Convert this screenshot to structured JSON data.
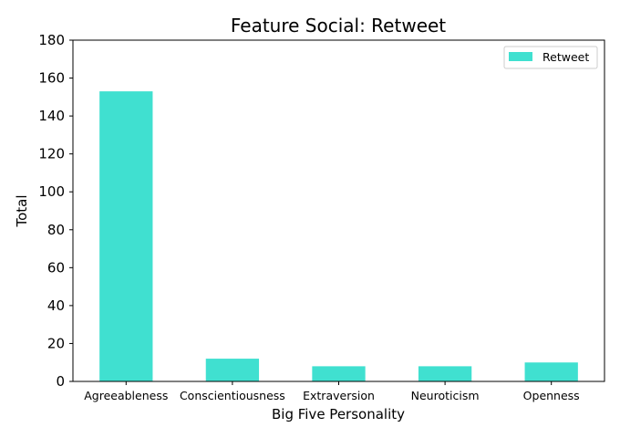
{
  "chart_data": {
    "type": "bar",
    "title": "Feature Social: Retweet",
    "xlabel": "Big Five Personality",
    "ylabel": "Total",
    "categories": [
      "Agreeableness",
      "Conscientiousness",
      "Extraversion",
      "Neuroticism",
      "Openness"
    ],
    "series": [
      {
        "name": "Retweet",
        "values": [
          153,
          12,
          8,
          8,
          10
        ]
      }
    ],
    "ylim": [
      0,
      180
    ],
    "yticks": [
      0,
      20,
      40,
      60,
      80,
      100,
      120,
      140,
      160,
      180
    ],
    "grid": false,
    "legend_position": "top-right",
    "bar_color": "#40e0d0"
  }
}
